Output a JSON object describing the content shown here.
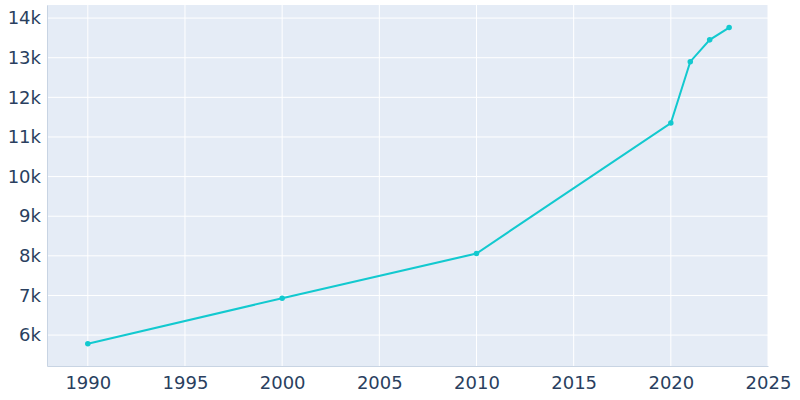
{
  "chart_data": {
    "type": "line",
    "x": [
      1990,
      2000,
      2010,
      2020,
      2021,
      2022,
      2023
    ],
    "values": [
      5780,
      6930,
      8060,
      11350,
      12900,
      13450,
      13760
    ],
    "color": "#12c9cf",
    "marker": "circle",
    "line_style": "solid",
    "xlim": [
      1987.9,
      2025
    ],
    "xticks": [
      1990,
      1995,
      2000,
      2005,
      2010,
      2015,
      2020,
      2025
    ],
    "ylim": [
      5220,
      14330
    ],
    "yticks": [
      {
        "value": 6000,
        "label": "6k"
      },
      {
        "value": 7000,
        "label": "7k"
      },
      {
        "value": 8000,
        "label": "8k"
      },
      {
        "value": 9000,
        "label": "9k"
      },
      {
        "value": 10000,
        "label": "10k"
      },
      {
        "value": 11000,
        "label": "11k"
      },
      {
        "value": 12000,
        "label": "12k"
      },
      {
        "value": 13000,
        "label": "13k"
      },
      {
        "value": 14000,
        "label": "14k"
      }
    ],
    "grid": true
  }
}
